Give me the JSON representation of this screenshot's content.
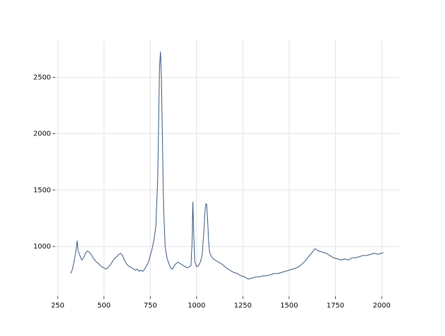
{
  "chart_data": {
    "type": "line",
    "x": [
      320,
      330,
      340,
      350,
      355,
      360,
      370,
      380,
      390,
      400,
      410,
      420,
      430,
      440,
      450,
      460,
      470,
      480,
      490,
      500,
      510,
      520,
      530,
      540,
      550,
      560,
      570,
      580,
      590,
      600,
      610,
      620,
      630,
      640,
      650,
      660,
      670,
      680,
      690,
      700,
      710,
      720,
      730,
      740,
      750,
      760,
      770,
      780,
      790,
      795,
      800,
      805,
      810,
      815,
      820,
      825,
      830,
      840,
      850,
      860,
      870,
      880,
      890,
      900,
      910,
      920,
      930,
      940,
      950,
      960,
      970,
      975,
      980,
      985,
      990,
      1000,
      1010,
      1020,
      1030,
      1040,
      1045,
      1050,
      1055,
      1060,
      1065,
      1070,
      1080,
      1090,
      1100,
      1120,
      1140,
      1160,
      1180,
      1200,
      1220,
      1240,
      1260,
      1280,
      1300,
      1320,
      1340,
      1360,
      1380,
      1400,
      1420,
      1440,
      1460,
      1480,
      1500,
      1520,
      1540,
      1560,
      1580,
      1600,
      1620,
      1640,
      1660,
      1680,
      1700,
      1720,
      1740,
      1760,
      1780,
      1800,
      1820,
      1840,
      1860,
      1880,
      1900,
      1920,
      1940,
      1960,
      1980,
      2000,
      2010
    ],
    "values": [
      760,
      800,
      880,
      980,
      1050,
      960,
      920,
      880,
      900,
      940,
      960,
      950,
      930,
      900,
      880,
      860,
      850,
      830,
      820,
      810,
      800,
      810,
      830,
      850,
      880,
      900,
      910,
      930,
      940,
      920,
      880,
      850,
      830,
      820,
      810,
      800,
      790,
      800,
      780,
      790,
      780,
      800,
      830,
      860,
      920,
      980,
      1060,
      1180,
      1600,
      2100,
      2600,
      2725,
      2500,
      2000,
      1500,
      1200,
      1000,
      900,
      850,
      810,
      800,
      830,
      850,
      860,
      850,
      840,
      830,
      820,
      810,
      820,
      830,
      1000,
      1395,
      1100,
      870,
      820,
      830,
      860,
      920,
      1150,
      1300,
      1380,
      1370,
      1220,
      1050,
      950,
      910,
      890,
      880,
      860,
      840,
      810,
      790,
      770,
      760,
      740,
      730,
      710,
      720,
      730,
      730,
      740,
      740,
      750,
      760,
      760,
      770,
      780,
      790,
      800,
      810,
      830,
      860,
      900,
      940,
      980,
      960,
      950,
      940,
      920,
      900,
      890,
      880,
      890,
      880,
      900,
      900,
      910,
      920,
      920,
      930,
      940,
      930,
      940,
      945
    ],
    "color": "#34557a",
    "xlim": [
      236,
      2094
    ],
    "ylim": [
      557,
      2828
    ],
    "xticks": [
      250,
      500,
      750,
      1000,
      1250,
      1500,
      1750,
      2000
    ],
    "yticks": [
      1000,
      1500,
      2000,
      2500
    ],
    "grid": true
  }
}
